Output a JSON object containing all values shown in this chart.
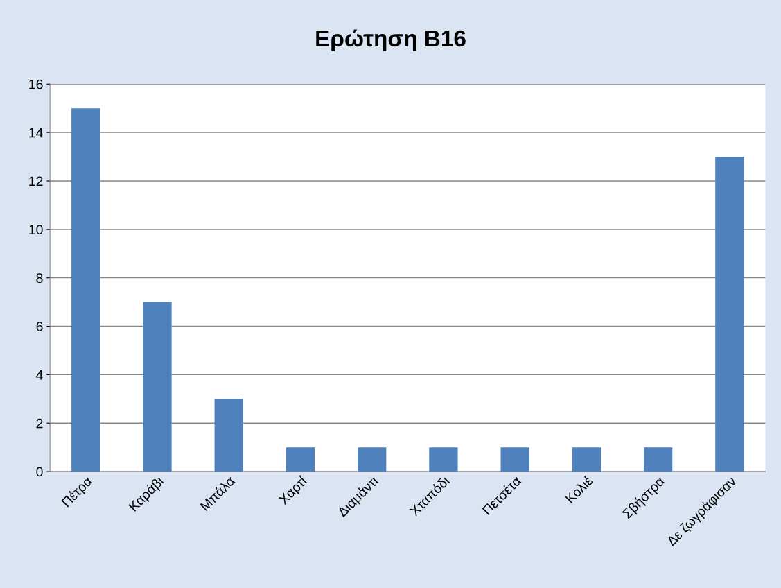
{
  "chart_data": {
    "type": "bar",
    "title": "Ερώτηση Β16",
    "categories": [
      "Πέτρα",
      "Καράβι",
      "Μπάλα",
      "Χαρτί",
      "Διαμάντι",
      "Χταπόδι",
      "Πετσέτα",
      "Κολιέ",
      "Σβήστρα",
      "Δε ζωγράφισαν"
    ],
    "values": [
      15,
      7,
      3,
      1,
      1,
      1,
      1,
      1,
      1,
      13
    ],
    "color": "#4f81bd",
    "ylim": [
      0,
      16
    ],
    "yticks": [
      0,
      2,
      4,
      6,
      8,
      10,
      12,
      14,
      16
    ],
    "grid": "y",
    "legend": false
  }
}
